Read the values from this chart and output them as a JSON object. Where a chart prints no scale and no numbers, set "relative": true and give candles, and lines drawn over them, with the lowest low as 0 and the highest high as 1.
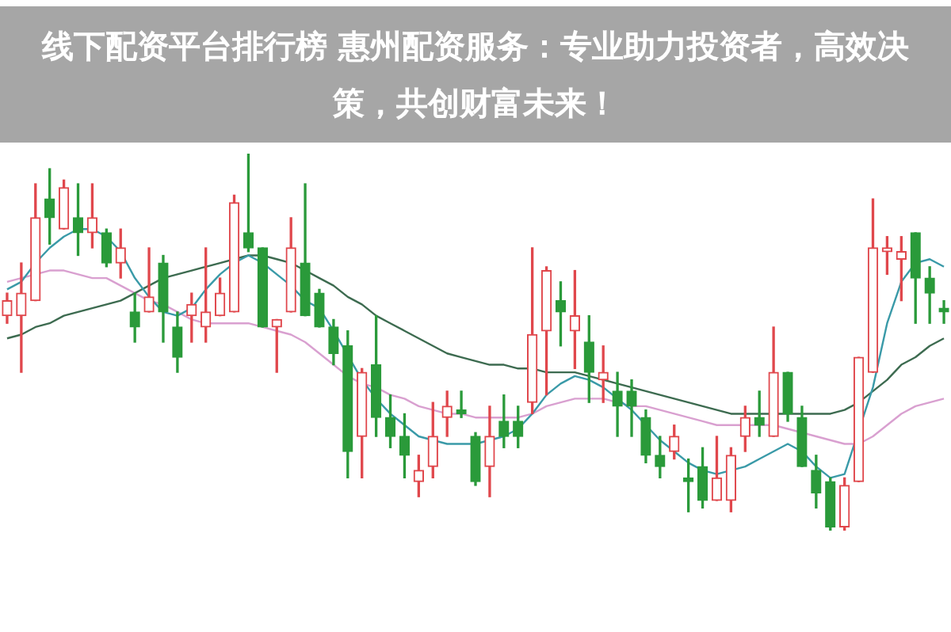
{
  "chart_data": {
    "type": "candlestick",
    "title": "线下配资平台排行榜 惠州配资服务：专业助力投资者，高效决策，共创财富未来！",
    "relative": true,
    "marker": "none",
    "legend": false,
    "categories": [
      null,
      null,
      null,
      null,
      null,
      null,
      null,
      null,
      null,
      null,
      null,
      null,
      null,
      null,
      null,
      null,
      null,
      null,
      null,
      null,
      null,
      null,
      null,
      null,
      null,
      null,
      null,
      null,
      null,
      null,
      null,
      null,
      null,
      null,
      null,
      null,
      null,
      null,
      null,
      null,
      null,
      null,
      null,
      null,
      null,
      null,
      null,
      null,
      null,
      null,
      null,
      null,
      null,
      null,
      null,
      null,
      null,
      null,
      null,
      null,
      null,
      null,
      null,
      null,
      null,
      null,
      null
    ],
    "ohlc": [
      [
        0.57,
        0.63,
        0.55,
        0.61
      ],
      [
        0.57,
        0.71,
        0.42,
        0.63
      ],
      [
        0.61,
        0.92,
        0.61,
        0.83
      ],
      [
        0.88,
        0.96,
        0.76,
        0.83
      ],
      [
        0.8,
        0.93,
        0.8,
        0.91
      ],
      [
        0.83,
        0.92,
        0.73,
        0.79
      ],
      [
        0.79,
        0.92,
        0.75,
        0.83
      ],
      [
        0.79,
        0.8,
        0.7,
        0.71
      ],
      [
        0.71,
        0.8,
        0.67,
        0.75
      ],
      [
        0.58,
        0.63,
        0.5,
        0.54
      ],
      [
        0.58,
        0.75,
        0.58,
        0.62
      ],
      [
        0.71,
        0.73,
        0.5,
        0.58
      ],
      [
        0.54,
        0.58,
        0.42,
        0.46
      ],
      [
        0.57,
        0.63,
        0.5,
        0.6
      ],
      [
        0.54,
        0.75,
        0.5,
        0.58
      ],
      [
        0.57,
        0.67,
        0.57,
        0.63
      ],
      [
        0.58,
        0.89,
        0.58,
        0.87
      ],
      [
        0.79,
        1,
        0.74,
        0.75
      ],
      [
        0.75,
        0.75,
        0.54,
        0.54
      ],
      [
        0.54,
        0.56,
        0.42,
        0.56
      ],
      [
        0.58,
        0.83,
        0.58,
        0.75
      ],
      [
        0.71,
        0.92,
        0.57,
        0.57
      ],
      [
        0.63,
        0.64,
        0.54,
        0.54
      ],
      [
        0.54,
        0.56,
        0.44,
        0.47
      ],
      [
        0.49,
        0.53,
        0.14,
        0.21
      ],
      [
        0.25,
        0.43,
        0.14,
        0.42
      ],
      [
        0.44,
        0.57,
        0.25,
        0.3
      ],
      [
        0.3,
        0.36,
        0.22,
        0.25
      ],
      [
        0.25,
        0.31,
        0.14,
        0.2
      ],
      [
        0.13,
        0.2,
        0.09,
        0.16
      ],
      [
        0.17,
        0.34,
        0.14,
        0.25
      ],
      [
        0.3,
        0.37,
        0.25,
        0.33
      ],
      [
        0.32,
        0.37,
        0.3,
        0.31
      ],
      [
        0.25,
        0.26,
        0.12,
        0.13
      ],
      [
        0.17,
        0.33,
        0.09,
        0.25
      ],
      [
        0.29,
        0.36,
        0.22,
        0.25
      ],
      [
        0.29,
        0.33,
        0.22,
        0.25
      ],
      [
        0.34,
        0.75,
        0.31,
        0.52
      ],
      [
        0.53,
        0.7,
        0.36,
        0.69
      ],
      [
        0.61,
        0.66,
        0.49,
        0.58
      ],
      [
        0.53,
        0.69,
        0.43,
        0.57
      ],
      [
        0.5,
        0.57,
        0.34,
        0.42
      ],
      [
        0.4,
        0.49,
        0.34,
        0.42
      ],
      [
        0.37,
        0.42,
        0.25,
        0.33
      ],
      [
        0.37,
        0.4,
        0.25,
        0.33
      ],
      [
        0.3,
        0.32,
        0.18,
        0.2
      ],
      [
        0.2,
        0.25,
        0.14,
        0.17
      ],
      [
        0.21,
        0.28,
        0.19,
        0.25
      ],
      [
        0.14,
        0.19,
        0.05,
        0.13
      ],
      [
        0.17,
        0.22,
        0.06,
        0.08
      ],
      [
        0.08,
        0.25,
        0.08,
        0.14
      ],
      [
        0.08,
        0.22,
        0.05,
        0.2
      ],
      [
        0.25,
        0.33,
        0.21,
        0.3
      ],
      [
        0.3,
        0.37,
        0.25,
        0.28
      ],
      [
        0.25,
        0.54,
        0.25,
        0.42
      ],
      [
        0.42,
        0.42,
        0.29,
        0.31
      ],
      [
        0.3,
        0.33,
        0.17,
        0.17
      ],
      [
        0.16,
        0.2,
        0.06,
        0.1
      ],
      [
        0.13,
        0.14,
        0,
        0.01
      ],
      [
        0.01,
        0.14,
        0,
        0.12
      ],
      [
        0.13,
        0.46,
        0.13,
        0.46
      ],
      [
        0.42,
        0.88,
        0.42,
        0.75
      ],
      [
        0.74,
        0.78,
        0.68,
        0.75
      ],
      [
        0.72,
        0.78,
        0.61,
        0.74
      ],
      [
        0.79,
        0.79,
        0.55,
        0.67
      ],
      [
        0.67,
        0.7,
        0.55,
        0.63
      ],
      [
        0.59,
        0.61,
        0.55,
        0.58
      ]
    ],
    "colors": [
      "#e0474c",
      "#e0474c",
      "#e0474c",
      "#2a9a3a",
      "#e0474c",
      "#2a9a3a",
      "#e0474c",
      "#2a9a3a",
      "#e0474c",
      "#2a9a3a",
      "#e0474c",
      "#2a9a3a",
      "#2a9a3a",
      "#e0474c",
      "#e0474c",
      "#e0474c",
      "#e0474c",
      "#2a9a3a",
      "#2a9a3a",
      "#e0474c",
      "#e0474c",
      "#2a9a3a",
      "#2a9a3a",
      "#2a9a3a",
      "#2a9a3a",
      "#e0474c",
      "#2a9a3a",
      "#2a9a3a",
      "#2a9a3a",
      "#e0474c",
      "#e0474c",
      "#e0474c",
      "#2a9a3a",
      "#2a9a3a",
      "#e0474c",
      "#2a9a3a",
      "#2a9a3a",
      "#e0474c",
      "#e0474c",
      "#2a9a3a",
      "#e0474c",
      "#2a9a3a",
      "#e0474c",
      "#2a9a3a",
      "#2a9a3a",
      "#2a9a3a",
      "#2a9a3a",
      "#e0474c",
      "#2a9a3a",
      "#2a9a3a",
      "#e0474c",
      "#e0474c",
      "#e0474c",
      "#2a9a3a",
      "#e0474c",
      "#2a9a3a",
      "#2a9a3a",
      "#2a9a3a",
      "#2a9a3a",
      "#e0474c",
      "#e0474c",
      "#e0474c",
      "#e0474c",
      "#e0474c",
      "#2a9a3a",
      "#2a9a3a",
      "#2a9a3a"
    ],
    "series": [
      {
        "type": "line",
        "color": "#3a9aa8",
        "values": [
          0.64,
          0.66,
          0.71,
          0.75,
          0.78,
          0.8,
          0.8,
          0.78,
          0.74,
          0.67,
          0.62,
          0.58,
          0.57,
          0.59,
          0.64,
          0.68,
          0.71,
          0.73,
          0.71,
          0.68,
          0.65,
          0.61,
          0.59,
          0.53,
          null,
          0.4,
          0.35,
          0.31,
          0.28,
          0.25,
          0.24,
          0.23,
          0.23,
          0.23,
          0.24,
          0.25,
          0.27,
          0.31,
          0.36,
          0.39,
          0.41,
          0.4,
          0.38,
          0.35,
          0.32,
          0.28,
          0.24,
          0.21,
          0.18,
          0.16,
          0.15,
          0.16,
          0.17,
          0.19,
          0.21,
          0.23,
          0.21,
          0.17,
          0.14,
          0.15,
          null,
          0.38,
          0.55,
          0.66,
          0.71,
          0.72,
          0.7
        ]
      },
      {
        "type": "line",
        "color": "#3d6b50",
        "values": [
          0.51,
          0.52,
          0.54,
          0.55,
          0.57,
          0.58,
          0.59,
          0.6,
          0.61,
          0.63,
          0.65,
          0.67,
          0.68,
          0.69,
          0.7,
          0.71,
          0.72,
          0.73,
          0.73,
          0.72,
          0.71,
          0.69,
          0.67,
          0.65,
          0.62,
          0.6,
          0.57,
          0.55,
          0.53,
          0.51,
          0.49,
          0.47,
          0.46,
          0.45,
          0.44,
          0.44,
          0.43,
          0.43,
          0.42,
          0.42,
          0.42,
          0.41,
          0.4,
          0.39,
          0.38,
          0.37,
          0.36,
          0.35,
          0.34,
          0.33,
          0.32,
          0.31,
          0.31,
          0.31,
          0.31,
          0.31,
          0.31,
          0.31,
          0.31,
          0.32,
          0.34,
          0.37,
          0.4,
          0.44,
          0.46,
          0.49,
          0.51
        ]
      },
      {
        "type": "line",
        "color": "#d9a0d0",
        "values": [
          0.66,
          0.67,
          0.68,
          0.69,
          0.69,
          0.68,
          0.67,
          0.67,
          0.65,
          0.63,
          0.61,
          0.6,
          0.58,
          0.56,
          0.55,
          0.55,
          0.55,
          0.55,
          0.54,
          0.53,
          0.52,
          0.5,
          0.47,
          0.44,
          0.41,
          0.39,
          0.38,
          0.36,
          0.35,
          0.33,
          0.32,
          0.31,
          0.31,
          0.3,
          0.3,
          0.3,
          0.3,
          0.31,
          0.33,
          0.34,
          0.35,
          0.35,
          0.35,
          0.34,
          0.33,
          0.33,
          0.32,
          0.31,
          0.3,
          0.29,
          0.28,
          0.28,
          0.28,
          0.28,
          0.28,
          0.27,
          0.26,
          0.25,
          0.24,
          0.23,
          0.23,
          0.25,
          0.28,
          0.31,
          0.33,
          0.34,
          0.35
        ]
      }
    ]
  }
}
